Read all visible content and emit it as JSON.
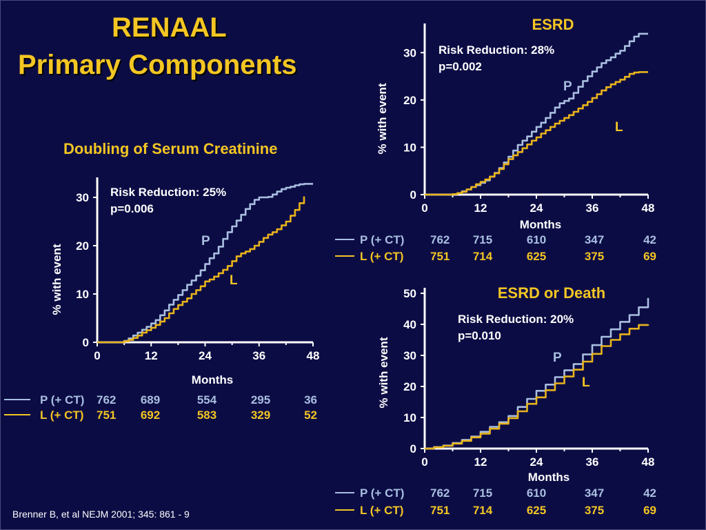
{
  "slide": {
    "title_line1": "RENAAL",
    "title_line2": "Primary Components",
    "citation": "Brenner B, et al NEJM  2001; 345: 861 - 9"
  },
  "colors": {
    "background": "#0c0c45",
    "accent": "#f3c623",
    "P": "#a9bfe0",
    "L": "#e8b41b",
    "axis": "#ffffff"
  },
  "chart_data": [
    {
      "type": "line",
      "title": "Doubling of Serum Creatinine",
      "xlabel": "Months",
      "ylabel": "% with event",
      "xlim": [
        0,
        48
      ],
      "ylim": [
        0,
        33
      ],
      "xticks": [
        0,
        12,
        24,
        36,
        48
      ],
      "yticks": [
        0,
        10,
        20,
        30
      ],
      "annotation_line1": "Risk Reduction:  25%",
      "annotation_line2": " p=0.006",
      "series": [
        {
          "name": "P",
          "x": [
            0,
            3,
            5,
            6,
            7,
            8,
            9,
            10,
            11,
            12,
            13,
            14,
            15,
            16,
            17,
            18,
            19,
            20,
            21,
            22,
            23,
            24,
            25,
            26,
            27,
            28,
            29,
            30,
            31,
            32,
            33,
            34,
            35,
            36,
            37,
            38,
            39,
            40,
            41,
            42,
            43,
            44,
            45,
            46,
            47,
            48
          ],
          "y": [
            0,
            0,
            0,
            0.3,
            0.8,
            1.4,
            2,
            2.6,
            3.2,
            3.9,
            4.6,
            5.6,
            6.6,
            7.8,
            8.8,
            9.8,
            10.8,
            11.9,
            12.8,
            13.8,
            14.9,
            16.2,
            17.4,
            18.4,
            19.8,
            21.4,
            22.8,
            24,
            25.2,
            26.4,
            27.6,
            28.6,
            29.5,
            30,
            30,
            30.1,
            30.6,
            31.2,
            31.7,
            32,
            32.2,
            32.5,
            32.7,
            32.8,
            32.8,
            32.8
          ]
        },
        {
          "name": "L",
          "x": [
            0,
            3,
            5,
            6,
            7,
            8,
            9,
            10,
            11,
            12,
            13,
            14,
            15,
            16,
            17,
            18,
            19,
            20,
            21,
            22,
            23,
            24,
            25,
            26,
            27,
            28,
            29,
            30,
            31,
            32,
            33,
            34,
            35,
            36,
            37,
            38,
            39,
            40,
            41,
            42,
            43,
            44,
            45,
            46
          ],
          "y": [
            0,
            0,
            0,
            0.2,
            0.5,
            0.9,
            1.4,
            2,
            2.5,
            3,
            3.6,
            4.3,
            5,
            6,
            6.9,
            7.7,
            8.4,
            9.1,
            10,
            10.8,
            11.6,
            12.6,
            13,
            13.6,
            14.3,
            15,
            15.8,
            16.8,
            17.8,
            18.4,
            18.8,
            19.3,
            20,
            20.8,
            21.6,
            22.3,
            22.8,
            23.4,
            24.2,
            25,
            26.2,
            27.4,
            28.8,
            30.2
          ]
        }
      ],
      "at_risk": {
        "P": {
          "label": "P (+ CT)",
          "values": [
            "762",
            "689",
            "554",
            "295",
            "36"
          ]
        },
        "L": {
          "label": "L (+ CT)",
          "values": [
            "751",
            "692",
            "583",
            "329",
            "52"
          ]
        }
      }
    },
    {
      "type": "line",
      "title": "ESRD",
      "xlabel": "Months",
      "ylabel": "% with event",
      "xlim": [
        0,
        48
      ],
      "ylim": [
        0,
        35
      ],
      "xticks": [
        0,
        12,
        24,
        36,
        48
      ],
      "yticks": [
        0,
        10,
        20,
        30
      ],
      "annotation_line1": "Risk Reduction:  28%",
      "annotation_line2": "p=0.002",
      "series": [
        {
          "name": "P",
          "x": [
            0,
            4,
            6,
            7,
            8,
            9,
            10,
            11,
            12,
            13,
            14,
            15,
            16,
            17,
            18,
            19,
            20,
            21,
            22,
            23,
            24,
            25,
            26,
            27,
            28,
            29,
            30,
            31,
            32,
            33,
            34,
            35,
            36,
            37,
            38,
            39,
            40,
            41,
            42,
            43,
            44,
            45,
            46,
            47,
            48
          ],
          "y": [
            0,
            0,
            0.1,
            0.3,
            0.7,
            1.1,
            1.6,
            2,
            2.5,
            3,
            3.8,
            4.6,
            5.6,
            6.8,
            8,
            9.3,
            10.5,
            11.4,
            12.3,
            13.3,
            14.3,
            15.2,
            16.2,
            17.3,
            18.4,
            19.3,
            19.8,
            20.3,
            21.5,
            22.8,
            24,
            25,
            26,
            26.9,
            27.8,
            28.4,
            29,
            29.8,
            30.4,
            31.4,
            32.4,
            33.4,
            34,
            34,
            34
          ]
        },
        {
          "name": "L",
          "x": [
            0,
            4,
            6,
            7,
            8,
            9,
            10,
            11,
            12,
            13,
            14,
            15,
            16,
            17,
            18,
            19,
            20,
            21,
            22,
            23,
            24,
            25,
            26,
            27,
            28,
            29,
            30,
            31,
            32,
            33,
            34,
            35,
            36,
            37,
            38,
            39,
            40,
            41,
            42,
            43,
            44,
            45,
            46,
            47,
            48
          ],
          "y": [
            0,
            0,
            0.1,
            0.3,
            0.6,
            1.1,
            1.6,
            2.2,
            2.7,
            3.2,
            3.8,
            4.5,
            5.4,
            6.4,
            7.5,
            8.3,
            9,
            9.8,
            10.6,
            11.4,
            12.1,
            12.9,
            13.6,
            14.3,
            15,
            15.6,
            16.2,
            16.8,
            17.5,
            18.2,
            18.9,
            19.6,
            20.4,
            21.2,
            22,
            22.7,
            23.3,
            23.8,
            24.3,
            24.9,
            25.5,
            25.8,
            25.9,
            25.9,
            25.9
          ]
        }
      ],
      "at_risk": {
        "P": {
          "label": "P (+ CT)",
          "values": [
            "762",
            "715",
            "610",
            "347",
            "42"
          ]
        },
        "L": {
          "label": "L (+ CT)",
          "values": [
            "751",
            "714",
            "625",
            "375",
            "69"
          ]
        }
      }
    },
    {
      "type": "line",
      "title": "ESRD or Death",
      "xlabel": "Months",
      "ylabel": "% with event",
      "xlim": [
        0,
        48
      ],
      "ylim": [
        0,
        50
      ],
      "xticks": [
        0,
        12,
        24,
        36,
        48
      ],
      "yticks": [
        0,
        10,
        20,
        30,
        40,
        50
      ],
      "annotation_line1": "Risk Reduction:  20%",
      "annotation_line2": "p=0.010",
      "series": [
        {
          "name": "P",
          "x": [
            0,
            2,
            4,
            6,
            8,
            10,
            12,
            14,
            16,
            18,
            20,
            22,
            24,
            26,
            28,
            30,
            32,
            34,
            36,
            38,
            40,
            42,
            44,
            46,
            48
          ],
          "y": [
            0,
            0.5,
            1,
            1.8,
            2.8,
            3.9,
            5.4,
            7,
            8.5,
            10.5,
            13.4,
            16,
            18.6,
            20.6,
            23,
            25.2,
            27.2,
            30.3,
            33.3,
            36,
            38.4,
            40.8,
            43,
            45.5,
            48.5
          ]
        },
        {
          "name": "L",
          "x": [
            0,
            2,
            4,
            6,
            8,
            10,
            12,
            14,
            16,
            18,
            20,
            22,
            24,
            26,
            28,
            30,
            32,
            34,
            36,
            38,
            40,
            42,
            44,
            46,
            48
          ],
          "y": [
            0,
            0.4,
            0.9,
            1.6,
            2.5,
            3.6,
            4.8,
            6.4,
            8,
            9.8,
            12,
            14.4,
            16.5,
            18.8,
            21,
            23.2,
            25.4,
            28,
            30.5,
            33,
            35,
            36.8,
            38.6,
            39.8,
            40
          ]
        }
      ],
      "at_risk": {
        "P": {
          "label": "P (+ CT)",
          "values": [
            "762",
            "715",
            "610",
            "347",
            "42"
          ]
        },
        "L": {
          "label": "L (+ CT)",
          "values": [
            "751",
            "714",
            "625",
            "375",
            "69"
          ]
        }
      }
    }
  ]
}
